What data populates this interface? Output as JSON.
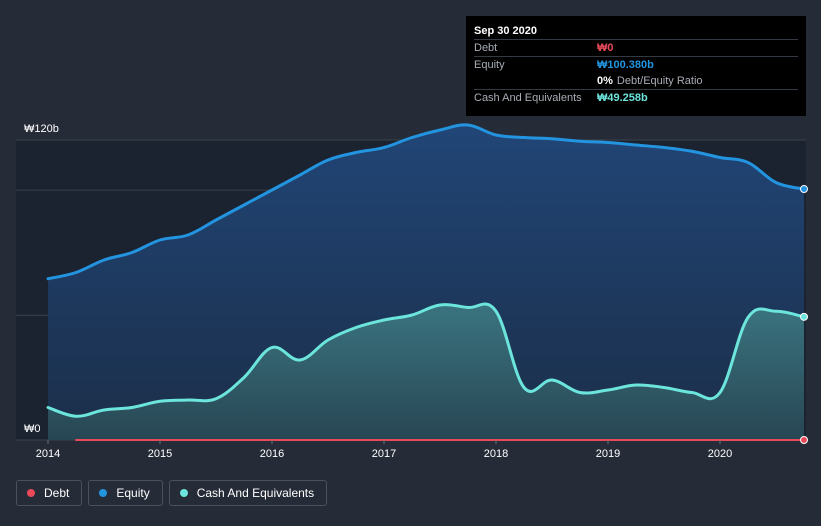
{
  "tooltip": {
    "date": "Sep 30 2020",
    "debt_label": "Debt",
    "debt_value": "₩0",
    "equity_label": "Equity",
    "equity_value": "₩100.380b",
    "ratio_value": "0%",
    "ratio_label": "Debt/Equity Ratio",
    "cash_label": "Cash And Equivalents",
    "cash_value": "₩49.258b"
  },
  "legend": {
    "debt": "Debt",
    "equity": "Equity",
    "cash": "Cash And Equivalents"
  },
  "colors": {
    "background": "#252b37",
    "debt": "#e84a5a",
    "equity": "#2394df",
    "cash": "#6ce5dc"
  },
  "chart_data": {
    "type": "area",
    "title": "",
    "xlabel": "",
    "ylabel": "",
    "y_unit_label_top": "₩120b",
    "y_unit_label_bottom": "₩0",
    "ylim": [
      0,
      120
    ],
    "xlim": [
      2014.0,
      2020.75
    ],
    "x_ticks": [
      "2014",
      "2015",
      "2016",
      "2017",
      "2018",
      "2019",
      "2020"
    ],
    "highlight_x": 2020.75,
    "series": [
      {
        "name": "Equity",
        "points": [
          [
            2014.0,
            64.5
          ],
          [
            2014.25,
            67.0
          ],
          [
            2014.5,
            72.0
          ],
          [
            2014.75,
            75.0
          ],
          [
            2015.0,
            80.0
          ],
          [
            2015.25,
            82.0
          ],
          [
            2015.5,
            88.0
          ],
          [
            2015.75,
            94.0
          ],
          [
            2016.0,
            100.0
          ],
          [
            2016.25,
            106.0
          ],
          [
            2016.5,
            112.0
          ],
          [
            2016.75,
            115.0
          ],
          [
            2017.0,
            117.0
          ],
          [
            2017.25,
            121.0
          ],
          [
            2017.5,
            124.0
          ],
          [
            2017.75,
            126.0
          ],
          [
            2018.0,
            122.0
          ],
          [
            2018.25,
            121.0
          ],
          [
            2018.5,
            120.5
          ],
          [
            2018.75,
            119.5
          ],
          [
            2019.0,
            119.0
          ],
          [
            2019.25,
            118.0
          ],
          [
            2019.5,
            117.0
          ],
          [
            2019.75,
            115.5
          ],
          [
            2020.0,
            113.0
          ],
          [
            2020.25,
            111.0
          ],
          [
            2020.5,
            103.0
          ],
          [
            2020.75,
            100.38
          ]
        ]
      },
      {
        "name": "Cash And Equivalents",
        "points": [
          [
            2014.0,
            13.0
          ],
          [
            2014.25,
            9.5
          ],
          [
            2014.5,
            12.0
          ],
          [
            2014.75,
            13.0
          ],
          [
            2015.0,
            15.5
          ],
          [
            2015.25,
            16.0
          ],
          [
            2015.5,
            16.5
          ],
          [
            2015.75,
            25.0
          ],
          [
            2016.0,
            37.0
          ],
          [
            2016.25,
            32.0
          ],
          [
            2016.5,
            40.0
          ],
          [
            2016.75,
            45.0
          ],
          [
            2017.0,
            48.0
          ],
          [
            2017.25,
            50.0
          ],
          [
            2017.5,
            54.0
          ],
          [
            2017.75,
            53.0
          ],
          [
            2018.0,
            51.5
          ],
          [
            2018.25,
            21.0
          ],
          [
            2018.5,
            24.0
          ],
          [
            2018.75,
            19.0
          ],
          [
            2019.0,
            20.0
          ],
          [
            2019.25,
            22.0
          ],
          [
            2019.5,
            21.0
          ],
          [
            2019.75,
            19.0
          ],
          [
            2020.0,
            19.0
          ],
          [
            2020.25,
            49.0
          ],
          [
            2020.5,
            51.5
          ],
          [
            2020.75,
            49.258
          ]
        ]
      },
      {
        "name": "Debt",
        "points": [
          [
            2014.25,
            0
          ],
          [
            2020.75,
            0
          ]
        ]
      }
    ]
  }
}
